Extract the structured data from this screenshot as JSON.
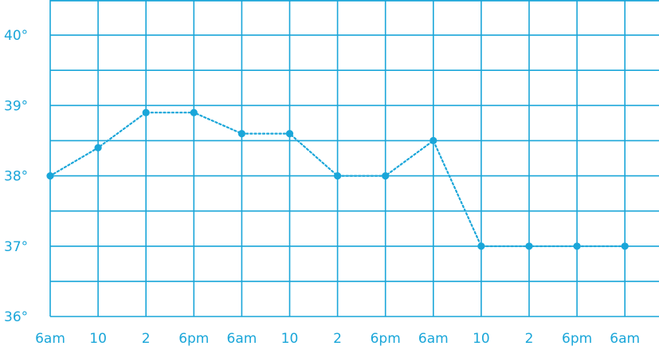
{
  "chart_data": {
    "type": "line",
    "title": "",
    "xlabel": "",
    "ylabel": "",
    "categories": [
      "6am",
      "10",
      "2",
      "6pm",
      "6am",
      "10",
      "2",
      "6pm",
      "6am",
      "10",
      "2",
      "6pm",
      "6am"
    ],
    "series": [
      {
        "values": [
          38.0,
          38.4,
          38.9,
          38.9,
          38.6,
          38.6,
          38.0,
          38.0,
          38.5,
          37.0,
          37.0,
          37.0,
          37.0
        ]
      }
    ],
    "y_ticks": [
      36,
      37,
      38,
      39,
      40
    ],
    "y_tick_labels": [
      "36°",
      "37°",
      "38°",
      "39°",
      "40°"
    ],
    "ylim": [
      36,
      40.5
    ],
    "y_minor_step": 0.5,
    "grid": true,
    "line_style": "dotted",
    "marker": "circle",
    "colors": {
      "grid": "#1aa6d9",
      "line": "#1aa6d9",
      "text": "#1aa6d9",
      "background": "#ffffff"
    }
  }
}
